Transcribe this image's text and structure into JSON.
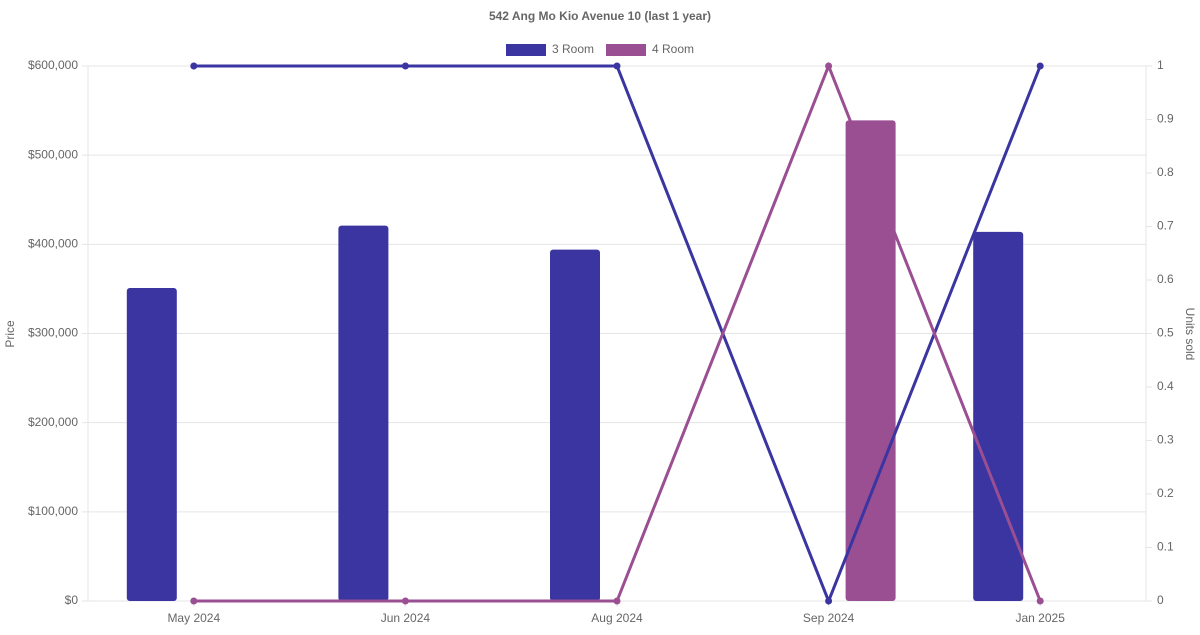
{
  "chart_data": {
    "type": "bar",
    "title": "542 Ang Mo Kio Avenue 10 (last 1 year)",
    "y_label": "Price",
    "y2_label": "Units sold",
    "categories": [
      "May 2024",
      "Jun 2024",
      "Aug 2024",
      "Sep 2024",
      "Jan 2025"
    ],
    "series": [
      {
        "name": "3 Room",
        "type": "bar",
        "color": "#3a35a0",
        "values": [
          351000,
          421000,
          394000,
          null,
          414000
        ]
      },
      {
        "name": "4 Room",
        "type": "bar",
        "color": "#9b4f93",
        "values": [
          null,
          null,
          null,
          539000,
          null
        ]
      },
      {
        "type": "line",
        "axis": "y2",
        "color": "#3a35a0",
        "values": [
          1,
          1,
          1,
          0,
          1
        ]
      },
      {
        "type": "line",
        "axis": "y2",
        "color": "#9b4f93",
        "values": [
          0,
          0,
          0,
          1,
          0
        ]
      }
    ],
    "ylim": [
      0,
      600000
    ],
    "yticks": [
      {
        "value": 0,
        "label": "$0"
      },
      {
        "value": 100000,
        "label": "$100,000"
      },
      {
        "value": 200000,
        "label": "$200,000"
      },
      {
        "value": 300000,
        "label": "$300,000"
      },
      {
        "value": 400000,
        "label": "$400,000"
      },
      {
        "value": 500000,
        "label": "$500,000"
      },
      {
        "value": 600000,
        "label": "$600,000"
      }
    ],
    "y2lim": [
      0,
      1
    ],
    "y2ticks": [
      0,
      0.1,
      0.2,
      0.3,
      0.4,
      0.5,
      0.6,
      0.7,
      0.8,
      0.9,
      1
    ],
    "grid": true,
    "legend": "top"
  }
}
